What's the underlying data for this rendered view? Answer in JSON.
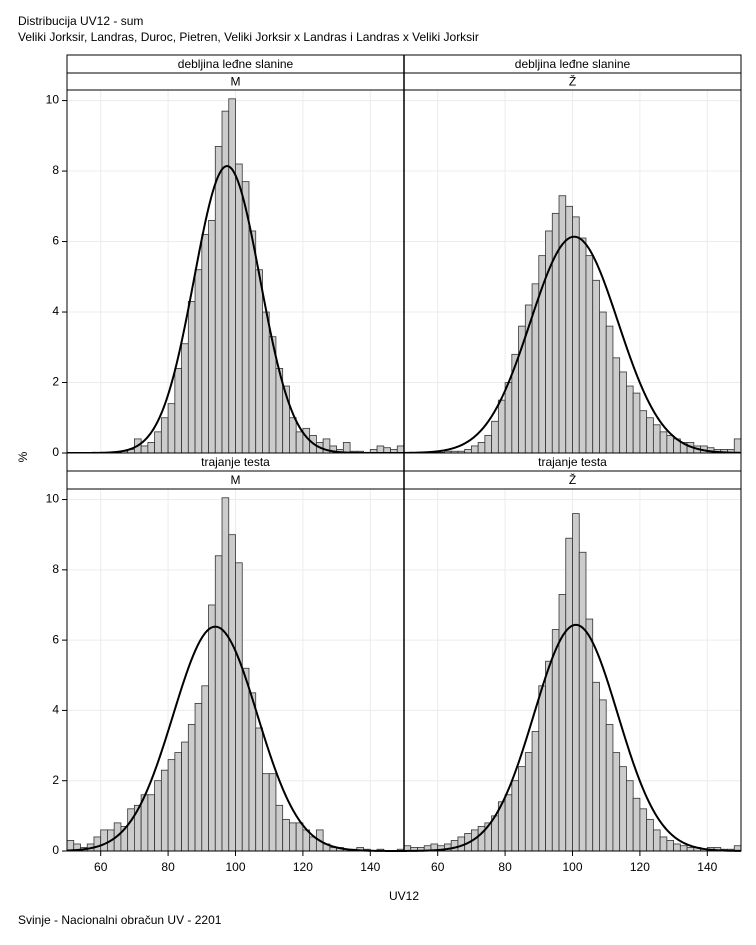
{
  "header": {
    "title": "Distribucija UV12 - sum",
    "subtitle": "Veliki Jorksir, Landras, Duroc, Pietren, Veliki Jorksir x Landras i Landras x Veliki Jorksir"
  },
  "x_label": "UV12",
  "y_label": "%",
  "footer": "Svinje - Nacionalni obračun UV - 2201",
  "chart_data": [
    {
      "type": "histogram",
      "row_label": "debljina leđne slanine",
      "column_label": "M",
      "color": "#cccccc",
      "grid": true,
      "bins": [
        50,
        52,
        54,
        56,
        58,
        60,
        62,
        64,
        66,
        68,
        70,
        72,
        74,
        76,
        78,
        80,
        82,
        84,
        86,
        88,
        90,
        92,
        94,
        96,
        98,
        100,
        102,
        104,
        106,
        108,
        110,
        112,
        114,
        116,
        118,
        120,
        122,
        124,
        126,
        128,
        130,
        132,
        134,
        136,
        138,
        140,
        142,
        144,
        146,
        148,
        150
      ],
      "values": [
        0,
        0,
        0,
        0,
        0,
        0,
        0,
        0.02,
        0.05,
        0.1,
        0.4,
        0.2,
        0.3,
        0.6,
        1.0,
        1.4,
        2.4,
        3.1,
        4.3,
        5.2,
        6.2,
        6.6,
        8.7,
        9.7,
        10.05,
        8.2,
        7.7,
        6.3,
        5.2,
        4.0,
        3.3,
        2.4,
        1.9,
        1.0,
        0.6,
        0.7,
        0.5,
        0.3,
        0.4,
        0.2,
        0.1,
        0.3,
        0.05,
        0.05,
        0.02,
        0.1,
        0.2,
        0.15,
        0.1,
        0.2
      ],
      "normal_fit": {
        "mean": 97.5,
        "sd": 9.8
      },
      "xlim": [
        50,
        150
      ],
      "ylim": [
        0,
        10.3
      ],
      "xticks": [
        60,
        80,
        100,
        120,
        140
      ],
      "yticks": [
        0,
        2,
        4,
        6,
        8,
        10
      ]
    },
    {
      "type": "histogram",
      "row_label": "debljina leđne slanine",
      "column_label": "Ž",
      "color": "#cccccc",
      "grid": true,
      "bins": [
        50,
        52,
        54,
        56,
        58,
        60,
        62,
        64,
        66,
        68,
        70,
        72,
        74,
        76,
        78,
        80,
        82,
        84,
        86,
        88,
        90,
        92,
        94,
        96,
        98,
        100,
        102,
        104,
        106,
        108,
        110,
        112,
        114,
        116,
        118,
        120,
        122,
        124,
        126,
        128,
        130,
        132,
        134,
        136,
        138,
        140,
        142,
        144,
        146,
        148,
        150
      ],
      "values": [
        0,
        0,
        0,
        0,
        0.02,
        0.02,
        0.05,
        0.05,
        0.05,
        0.1,
        0.2,
        0.3,
        0.5,
        0.9,
        1.5,
        2.0,
        2.8,
        3.6,
        4.2,
        4.8,
        5.6,
        6.3,
        6.8,
        7.3,
        7.0,
        6.7,
        6.1,
        5.6,
        4.9,
        4.0,
        3.6,
        2.7,
        2.3,
        1.9,
        1.7,
        1.2,
        1.0,
        0.8,
        0.6,
        0.5,
        0.4,
        0.3,
        0.3,
        0.2,
        0.2,
        0.15,
        0.1,
        0.1,
        0.1,
        0.4
      ],
      "normal_fit": {
        "mean": 100.5,
        "sd": 13
      },
      "xlim": [
        50,
        150
      ],
      "ylim": [
        0,
        10.3
      ],
      "xticks": [
        60,
        80,
        100,
        120,
        140
      ],
      "yticks": [
        0,
        2,
        4,
        6,
        8,
        10
      ]
    },
    {
      "type": "histogram",
      "row_label": "trajanje testa",
      "column_label": "M",
      "color": "#cccccc",
      "grid": true,
      "bins": [
        50,
        52,
        54,
        56,
        58,
        60,
        62,
        64,
        66,
        68,
        70,
        72,
        74,
        76,
        78,
        80,
        82,
        84,
        86,
        88,
        90,
        92,
        94,
        96,
        98,
        100,
        102,
        104,
        106,
        108,
        110,
        112,
        114,
        116,
        118,
        120,
        122,
        124,
        126,
        128,
        130,
        132,
        134,
        136,
        138,
        140,
        142,
        144,
        146,
        148,
        150
      ],
      "values": [
        0.3,
        0.2,
        0.1,
        0.2,
        0.4,
        0.6,
        0.6,
        0.8,
        0.7,
        1.2,
        1.3,
        1.6,
        1.6,
        2.0,
        2.3,
        2.6,
        2.8,
        3.1,
        3.6,
        4.2,
        4.7,
        7.0,
        8.4,
        10.05,
        9.0,
        8.2,
        5.2,
        4.5,
        3.5,
        2.2,
        2.2,
        1.3,
        0.9,
        0.8,
        0.8,
        0.6,
        0.4,
        0.6,
        0.2,
        0.1,
        0.1,
        0.05,
        0.05,
        0.1,
        0.05,
        0,
        0.05,
        0,
        0,
        0.05
      ],
      "normal_fit": {
        "mean": 94,
        "sd": 12.5
      },
      "xlim": [
        50,
        150
      ],
      "ylim": [
        0,
        10.3
      ],
      "xticks": [
        60,
        80,
        100,
        120,
        140
      ],
      "yticks": [
        0,
        2,
        4,
        6,
        8,
        10
      ]
    },
    {
      "type": "histogram",
      "row_label": "trajanje testa",
      "column_label": "Ž",
      "color": "#cccccc",
      "grid": true,
      "bins": [
        50,
        52,
        54,
        56,
        58,
        60,
        62,
        64,
        66,
        68,
        70,
        72,
        74,
        76,
        78,
        80,
        82,
        84,
        86,
        88,
        90,
        92,
        94,
        96,
        98,
        100,
        102,
        104,
        106,
        108,
        110,
        112,
        114,
        116,
        118,
        120,
        122,
        124,
        126,
        128,
        130,
        132,
        134,
        136,
        138,
        140,
        142,
        144,
        146,
        148,
        150
      ],
      "values": [
        0.15,
        0.1,
        0.1,
        0.15,
        0.2,
        0.15,
        0.2,
        0.3,
        0.4,
        0.5,
        0.6,
        0.7,
        0.8,
        1.0,
        1.4,
        1.6,
        2.0,
        2.4,
        2.8,
        3.4,
        4.7,
        5.4,
        6.3,
        7.3,
        8.9,
        9.6,
        8.5,
        6.6,
        4.8,
        4.3,
        3.6,
        2.8,
        2.4,
        2.0,
        1.5,
        1.2,
        0.9,
        0.6,
        0.4,
        0.3,
        0.2,
        0.15,
        0.1,
        0.1,
        0.05,
        0.1,
        0.1,
        0.05,
        0.05,
        0.15
      ],
      "normal_fit": {
        "mean": 101,
        "sd": 12.4
      },
      "xlim": [
        50,
        150
      ],
      "ylim": [
        0,
        10.3
      ],
      "xticks": [
        60,
        80,
        100,
        120,
        140
      ],
      "yticks": [
        0,
        2,
        4,
        6,
        8,
        10
      ]
    }
  ]
}
